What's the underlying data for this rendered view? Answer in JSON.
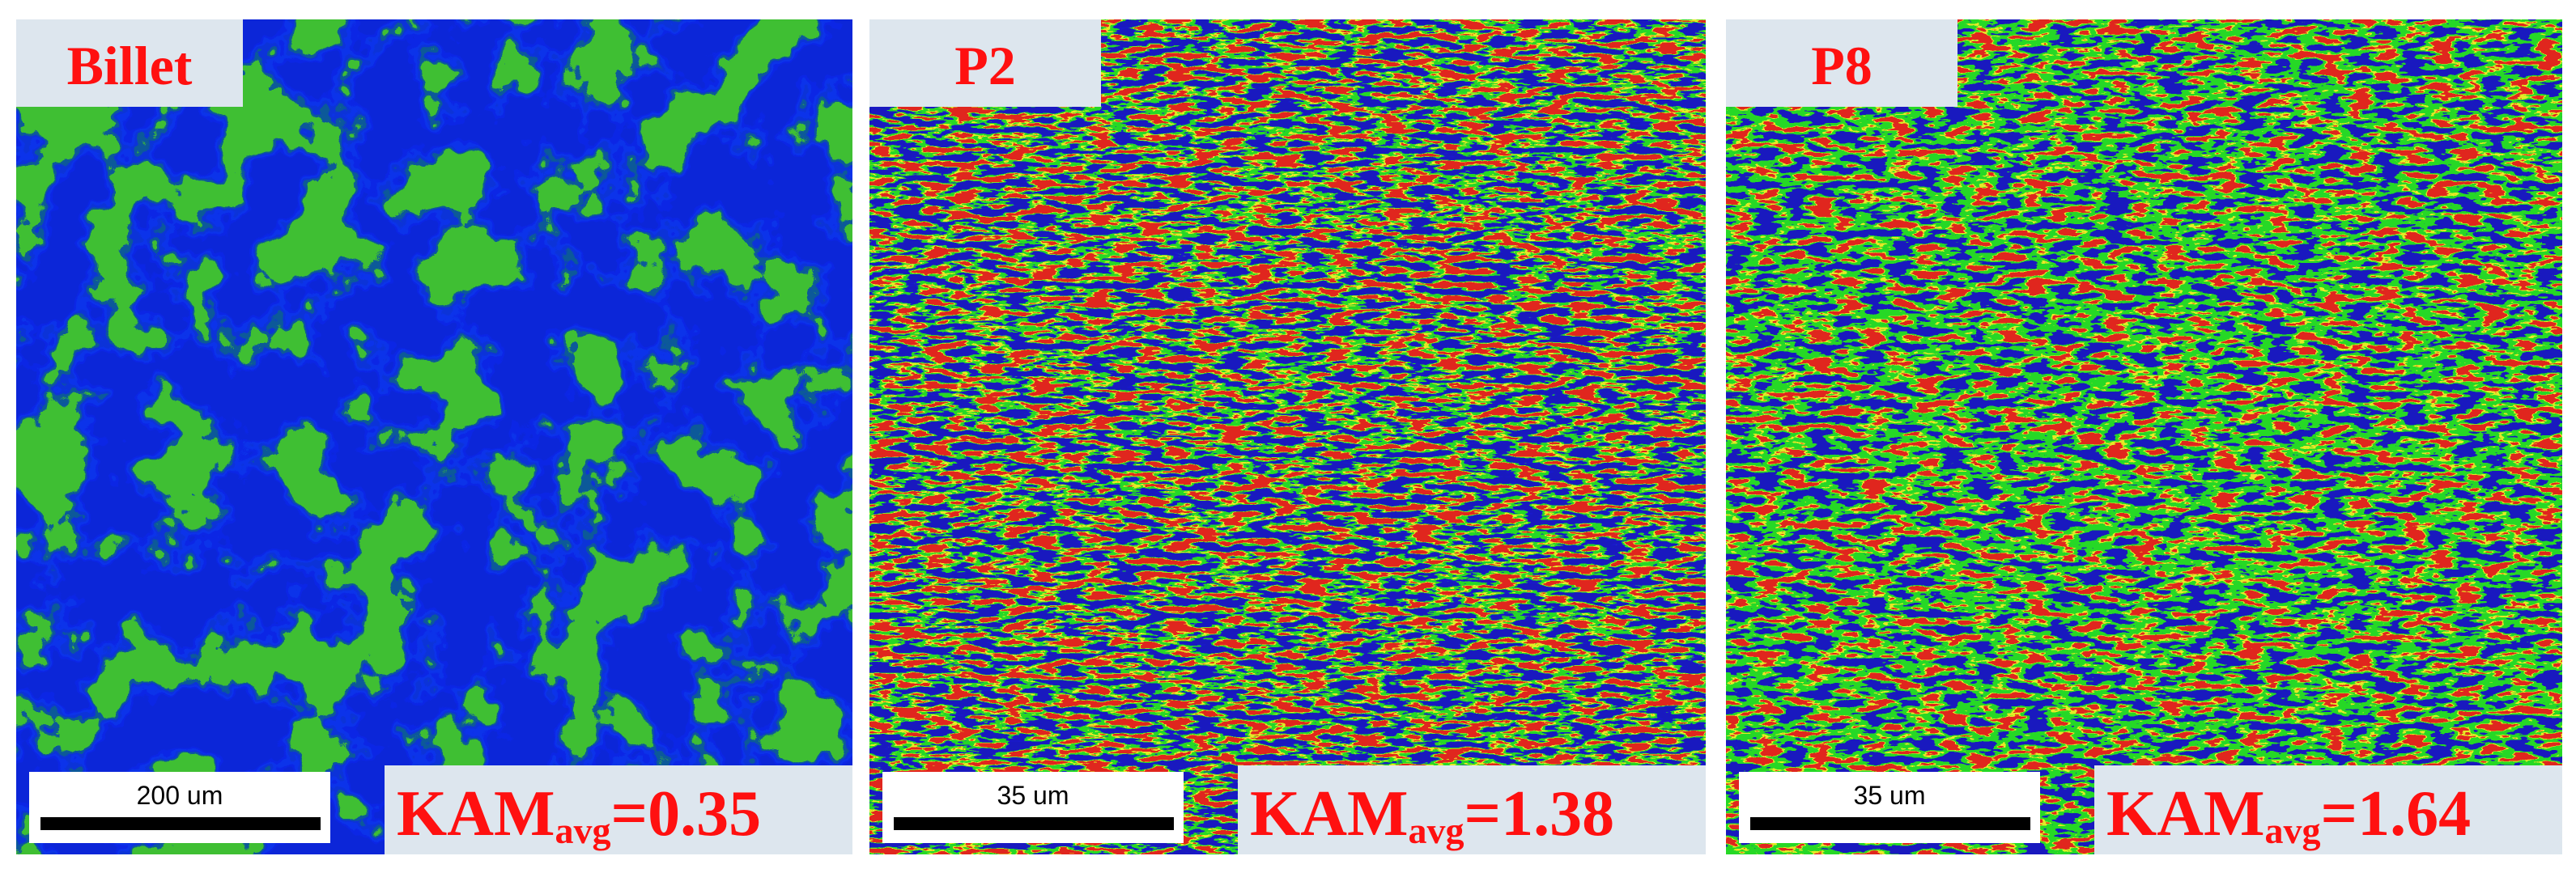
{
  "panels": [
    {
      "label": "Billet",
      "scale_bar": "200 um",
      "kam": "KAM",
      "kam_sub": "avg",
      "kam_value": "=0.35"
    },
    {
      "label": "P2",
      "scale_bar": "35 um",
      "kam": "KAM",
      "kam_sub": "avg",
      "kam_value": "=1.38"
    },
    {
      "label": "P8",
      "scale_bar": "35 um",
      "kam": "KAM",
      "kam_sub": "avg",
      "kam_value": "=1.64"
    }
  ]
}
